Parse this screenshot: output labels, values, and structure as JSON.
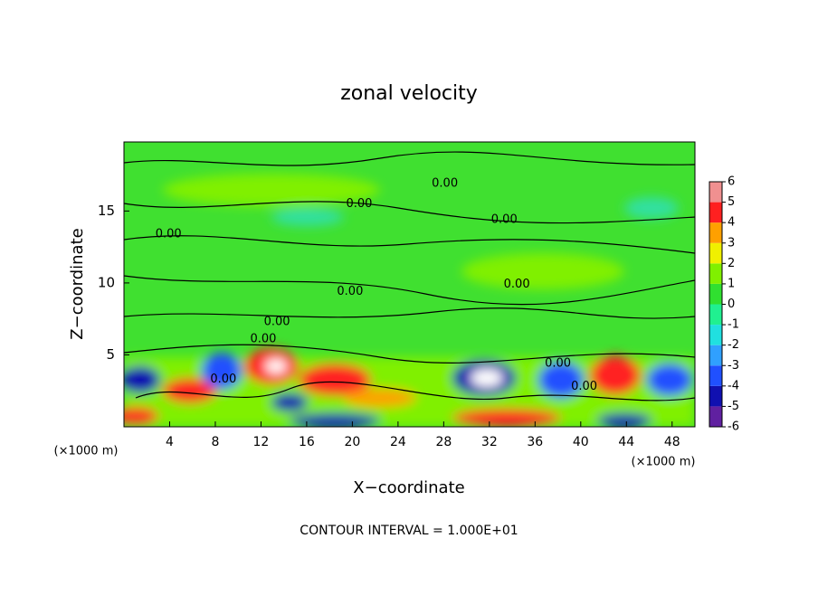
{
  "chart_data": {
    "type": "contour",
    "title": "zonal velocity",
    "xlabel": "X−coordinate",
    "ylabel": "Z−coordinate",
    "x_unit_label": "(×1000 m)",
    "annotation": "CONTOUR INTERVAL = 1.000E+01",
    "xlim": [
      0,
      50
    ],
    "xticks": [
      4,
      8,
      12,
      16,
      20,
      24,
      28,
      32,
      36,
      40,
      44,
      48
    ],
    "ylim": [
      0,
      19.8
    ],
    "yticks": [
      5,
      10,
      15
    ],
    "colorbar": {
      "levels": [
        -6,
        -5,
        -4,
        -3,
        -2,
        -1,
        0,
        1,
        2,
        3,
        4,
        5,
        6
      ],
      "colors": [
        "#6020a0",
        "#1010b0",
        "#2050ff",
        "#30a0ff",
        "#20e0e0",
        "#20f090",
        "#30e030",
        "#80f000",
        "#f0f000",
        "#ffa000",
        "#ff2020",
        "#f09090"
      ]
    },
    "contour_labels": [
      {
        "x": 20.6,
        "y": 15.5,
        "text": "0.00"
      },
      {
        "x": 28.1,
        "y": 16.9,
        "text": "0.00"
      },
      {
        "x": 33.3,
        "y": 14.4,
        "text": "0.00"
      },
      {
        "x": 3.9,
        "y": 13.4,
        "text": "0.00"
      },
      {
        "x": 19.8,
        "y": 9.4,
        "text": "0.00"
      },
      {
        "x": 34.4,
        "y": 9.9,
        "text": "0.00"
      },
      {
        "x": 13.4,
        "y": 7.3,
        "text": "0.00"
      },
      {
        "x": 12.2,
        "y": 6.1,
        "text": "0.00"
      },
      {
        "x": 38,
        "y": 4.4,
        "text": "0.00"
      },
      {
        "x": 8.7,
        "y": 3.3,
        "text": "0.00"
      },
      {
        "x": 40.3,
        "y": 2.8,
        "text": "0.00"
      }
    ]
  }
}
